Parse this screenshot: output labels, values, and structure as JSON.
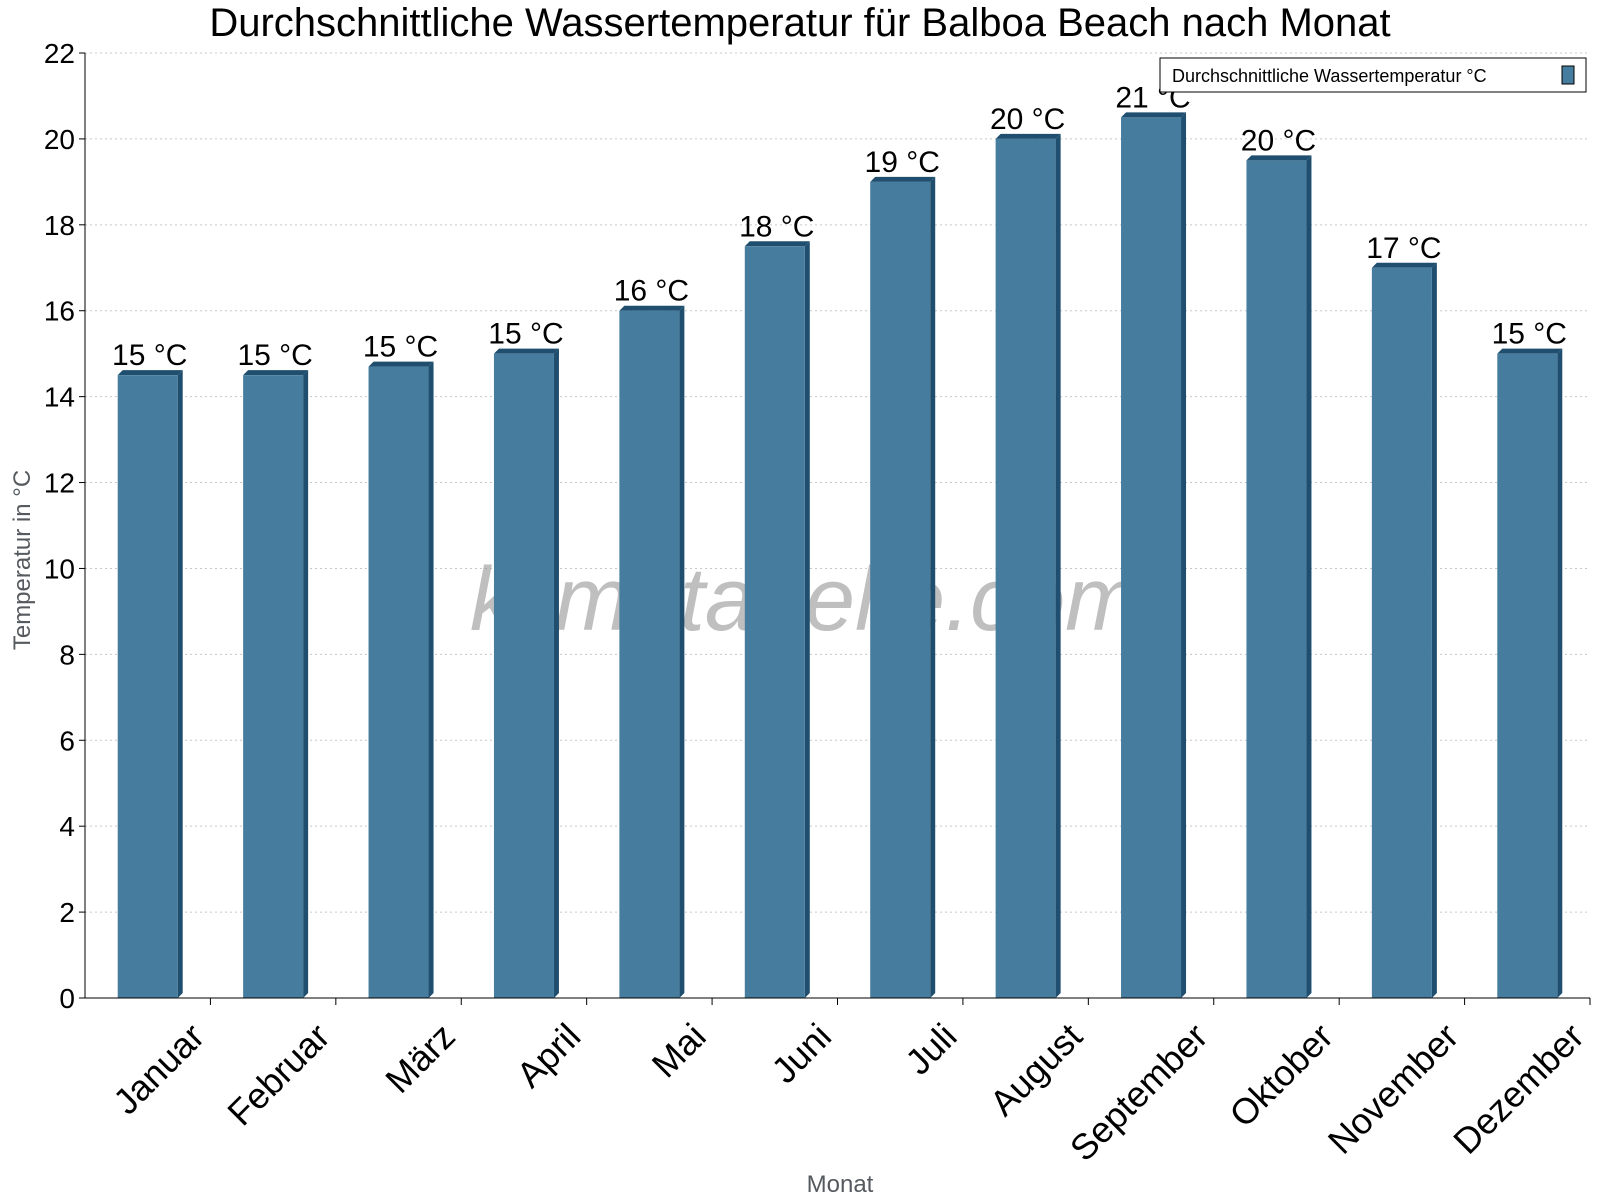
{
  "chart_data": {
    "type": "bar",
    "title": "Durchschnittliche Wassertemperatur für Balboa Beach nach Monat",
    "xlabel": "Monat",
    "ylabel": "Temperatur in °C",
    "categories": [
      "Januar",
      "Februar",
      "März",
      "April",
      "Mai",
      "Juni",
      "Juli",
      "August",
      "September",
      "Oktober",
      "November",
      "Dezember"
    ],
    "series": [
      {
        "name": "Durchschnittliche Wassertemperatur °C",
        "values": [
          14.5,
          14.5,
          14.7,
          15.0,
          16.0,
          17.5,
          19.0,
          20.0,
          20.5,
          19.5,
          17.0,
          15.0
        ],
        "labels": [
          "15 °C",
          "15 °C",
          "15 °C",
          "15 °C",
          "16 °C",
          "18 °C",
          "19 °C",
          "20 °C",
          "21 °C",
          "20 °C",
          "17 °C",
          "15 °C"
        ],
        "color": "#467c9e",
        "edge_color": "#1f4e6e"
      }
    ],
    "ylim": [
      0,
      22
    ],
    "yticks": [
      0,
      2,
      4,
      6,
      8,
      10,
      12,
      14,
      16,
      18,
      20,
      22
    ],
    "grid": true,
    "legend_position": "top-right",
    "watermark": "klimatabelle.com"
  }
}
